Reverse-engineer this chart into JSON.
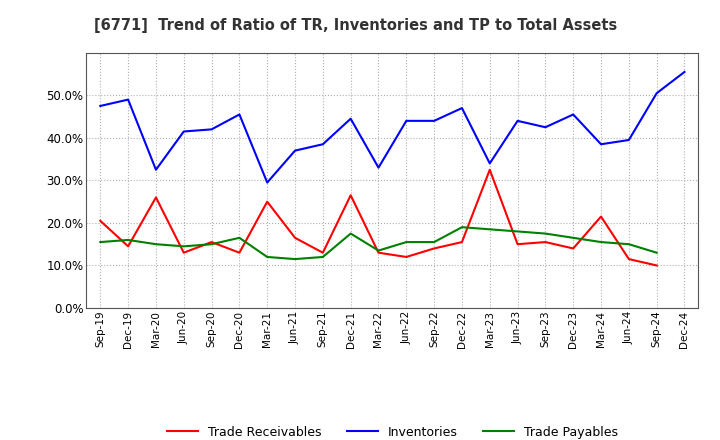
{
  "title": "[6771]  Trend of Ratio of TR, Inventories and TP to Total Assets",
  "x_labels": [
    "Sep-19",
    "Dec-19",
    "Mar-20",
    "Jun-20",
    "Sep-20",
    "Dec-20",
    "Mar-21",
    "Jun-21",
    "Sep-21",
    "Dec-21",
    "Mar-22",
    "Jun-22",
    "Sep-22",
    "Dec-22",
    "Mar-23",
    "Jun-23",
    "Sep-23",
    "Dec-23",
    "Mar-24",
    "Jun-24",
    "Sep-24",
    "Dec-24"
  ],
  "trade_receivables": [
    0.205,
    0.145,
    0.26,
    0.13,
    0.155,
    0.13,
    0.25,
    0.165,
    0.13,
    0.265,
    0.13,
    0.12,
    0.14,
    0.155,
    0.325,
    0.15,
    0.155,
    0.14,
    0.215,
    0.115,
    0.1,
    null
  ],
  "inventories": [
    0.475,
    0.49,
    0.325,
    0.415,
    0.42,
    0.455,
    0.295,
    0.37,
    0.385,
    0.445,
    0.33,
    0.44,
    0.44,
    0.47,
    0.34,
    0.44,
    0.425,
    0.455,
    0.385,
    0.395,
    0.505,
    0.555
  ],
  "trade_payables": [
    0.155,
    0.16,
    0.15,
    0.145,
    0.15,
    0.165,
    0.12,
    0.115,
    0.12,
    0.175,
    0.135,
    0.155,
    0.155,
    0.19,
    0.185,
    0.18,
    0.175,
    0.165,
    0.155,
    0.15,
    0.13,
    null
  ],
  "tr_color": "#ff0000",
  "inv_color": "#0000ff",
  "tp_color": "#008000",
  "ylim": [
    0.0,
    0.6
  ],
  "yticks": [
    0.0,
    0.1,
    0.2,
    0.3,
    0.4,
    0.5
  ],
  "background_color": "#ffffff",
  "grid_color": "#b0b0b0"
}
